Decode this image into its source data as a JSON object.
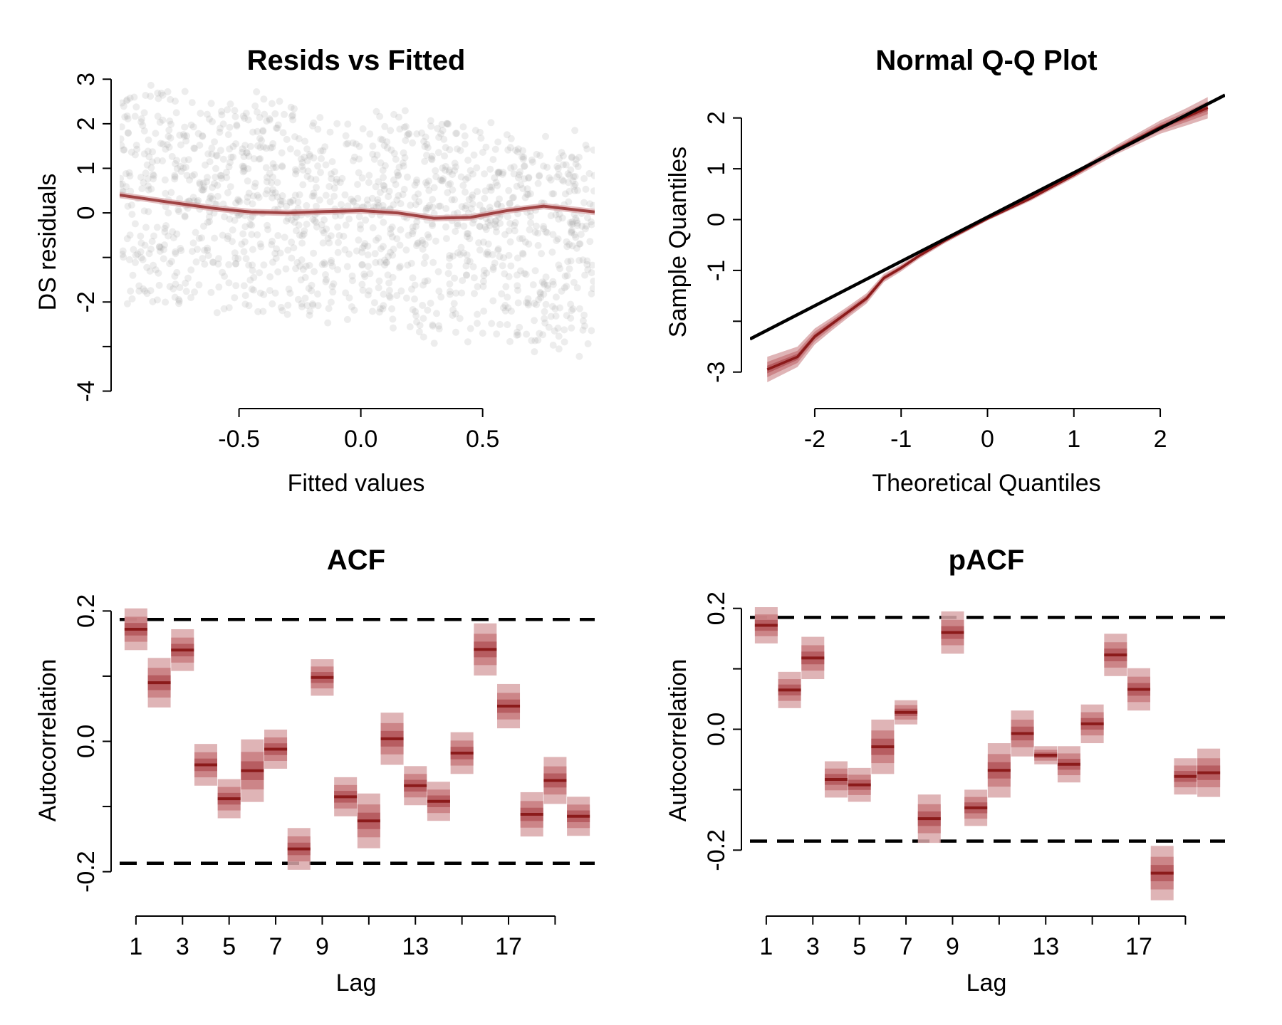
{
  "figure": {
    "background": "#ffffff"
  },
  "colors": {
    "point": "#9a9a9a",
    "line": "#8b1a1a",
    "band_outer": "#d9a7a9",
    "band_mid": "#c97c80",
    "band_inner": "#b3565b",
    "axis": "#000000"
  },
  "chart_data": [
    {
      "id": "resids",
      "type": "scatter",
      "title": "Resids vs Fitted",
      "xlabel": "Fitted values",
      "ylabel": "DS residuals",
      "xlim": [
        -0.99,
        0.96
      ],
      "ylim": [
        -4.2,
        3.1
      ],
      "xticks": [
        -0.5,
        0.0,
        0.5
      ],
      "xticklabels": [
        "-0.5",
        "0.0",
        "0.5"
      ],
      "yticks": [
        -4,
        -3,
        -2,
        -1,
        0,
        1,
        2,
        3
      ],
      "yticklabels": [
        "-4",
        "",
        "-2",
        "",
        "0",
        "1",
        "2",
        "3"
      ],
      "scatter_note": "dense cloud of semi-transparent grey points arranged in diagonal bands sloping downward",
      "smooth": {
        "x": [
          -0.99,
          -0.8,
          -0.6,
          -0.45,
          -0.3,
          -0.15,
          0.0,
          0.15,
          0.3,
          0.45,
          0.6,
          0.75,
          0.96
        ],
        "y": [
          0.4,
          0.25,
          0.1,
          0.02,
          0.0,
          0.03,
          0.05,
          0.0,
          -0.12,
          -0.1,
          0.05,
          0.15,
          0.02
        ]
      }
    },
    {
      "id": "qq",
      "type": "line",
      "title": "Normal Q-Q Plot",
      "xlabel": "Theoretical Quantiles",
      "ylabel": "Sample Quantiles",
      "xlim": [
        -2.75,
        2.75
      ],
      "ylim": [
        -3.55,
        2.85
      ],
      "xticks": [
        -2,
        -1,
        0,
        1,
        2
      ],
      "xticklabels": [
        "-2",
        "-1",
        "0",
        "1",
        "2"
      ],
      "yticks": [
        -3,
        -2,
        -1,
        0,
        1,
        2
      ],
      "yticklabels": [
        "-3",
        "",
        "-1",
        "0",
        "1",
        "2"
      ],
      "reference_line": {
        "x": [
          -2.75,
          2.75
        ],
        "y": [
          -2.35,
          2.45
        ]
      },
      "series": [
        {
          "x": [
            -2.55,
            -2.2,
            -2.0,
            -1.8,
            -1.6,
            -1.4,
            -1.2,
            -1.0,
            -0.8,
            -0.5,
            0.0,
            0.5,
            1.0,
            1.5,
            2.0,
            2.3,
            2.55
          ],
          "y": [
            -2.95,
            -2.7,
            -2.3,
            -2.05,
            -1.8,
            -1.55,
            -1.15,
            -0.95,
            -0.72,
            -0.42,
            0.02,
            0.42,
            0.88,
            1.38,
            1.82,
            2.02,
            2.2
          ],
          "band": [
            0.25,
            0.2,
            0.16,
            0.13,
            0.11,
            0.1,
            0.08,
            0.07,
            0.06,
            0.05,
            0.04,
            0.05,
            0.06,
            0.09,
            0.13,
            0.17,
            0.21
          ]
        }
      ]
    },
    {
      "id": "acf",
      "type": "scatter",
      "title": "ACF",
      "xlabel": "Lag",
      "ylabel": "Autocorrelation",
      "xlim": [
        0.3,
        20.7
      ],
      "ylim": [
        -0.255,
        0.255
      ],
      "xticks": [
        1,
        3,
        5,
        7,
        9,
        11,
        13,
        15,
        17,
        19
      ],
      "xticklabels": [
        "1",
        "3",
        "5",
        "7",
        "9",
        "",
        "13",
        "",
        "17",
        ""
      ],
      "yticks": [
        -0.2,
        -0.1,
        0.0,
        0.1,
        0.2
      ],
      "yticklabels": [
        "-0.2",
        "",
        "0.0",
        "",
        "0.2"
      ],
      "confidence_bounds": [
        0.187,
        -0.187
      ],
      "lags": [
        1,
        2,
        3,
        4,
        5,
        6,
        7,
        8,
        9,
        10,
        11,
        12,
        13,
        14,
        15,
        16,
        17,
        18,
        19,
        20
      ],
      "values": [
        0.172,
        0.09,
        0.14,
        -0.036,
        -0.088,
        -0.045,
        -0.012,
        -0.165,
        0.098,
        -0.085,
        -0.122,
        0.004,
        -0.068,
        -0.092,
        -0.018,
        0.141,
        0.054,
        -0.112,
        -0.06,
        -0.115
      ],
      "interval_half_width": [
        0.032,
        0.038,
        0.032,
        0.032,
        0.03,
        0.048,
        0.03,
        0.032,
        0.028,
        0.03,
        0.042,
        0.04,
        0.03,
        0.03,
        0.032,
        0.04,
        0.034,
        0.034,
        0.036,
        0.03
      ]
    },
    {
      "id": "pacf",
      "type": "scatter",
      "title": "pACF",
      "xlabel": "Lag",
      "ylabel": "Autocorrelation",
      "xlim": [
        0.3,
        20.7
      ],
      "ylim": [
        -0.295,
        0.255
      ],
      "xticks": [
        1,
        3,
        5,
        7,
        9,
        11,
        13,
        15,
        17,
        19
      ],
      "xticklabels": [
        "1",
        "3",
        "5",
        "7",
        "9",
        "",
        "13",
        "",
        "17",
        ""
      ],
      "yticks": [
        -0.2,
        -0.1,
        0.0,
        0.1,
        0.2
      ],
      "yticklabels": [
        "-0.2",
        "",
        "0.0",
        "",
        "0.2"
      ],
      "confidence_bounds": [
        0.185,
        -0.185
      ],
      "lags": [
        1,
        2,
        3,
        4,
        5,
        6,
        7,
        8,
        9,
        10,
        11,
        12,
        13,
        14,
        15,
        16,
        17,
        18,
        19,
        20
      ],
      "values": [
        0.172,
        0.065,
        0.118,
        -0.083,
        -0.092,
        -0.029,
        0.028,
        -0.148,
        0.16,
        -0.13,
        -0.068,
        -0.007,
        -0.043,
        -0.058,
        0.009,
        0.123,
        0.066,
        -0.238,
        -0.078,
        -0.072
      ],
      "interval_half_width": [
        0.03,
        0.03,
        0.035,
        0.03,
        0.028,
        0.045,
        0.02,
        0.04,
        0.035,
        0.03,
        0.045,
        0.038,
        0.015,
        0.03,
        0.032,
        0.035,
        0.035,
        0.045,
        0.03,
        0.04
      ]
    }
  ]
}
